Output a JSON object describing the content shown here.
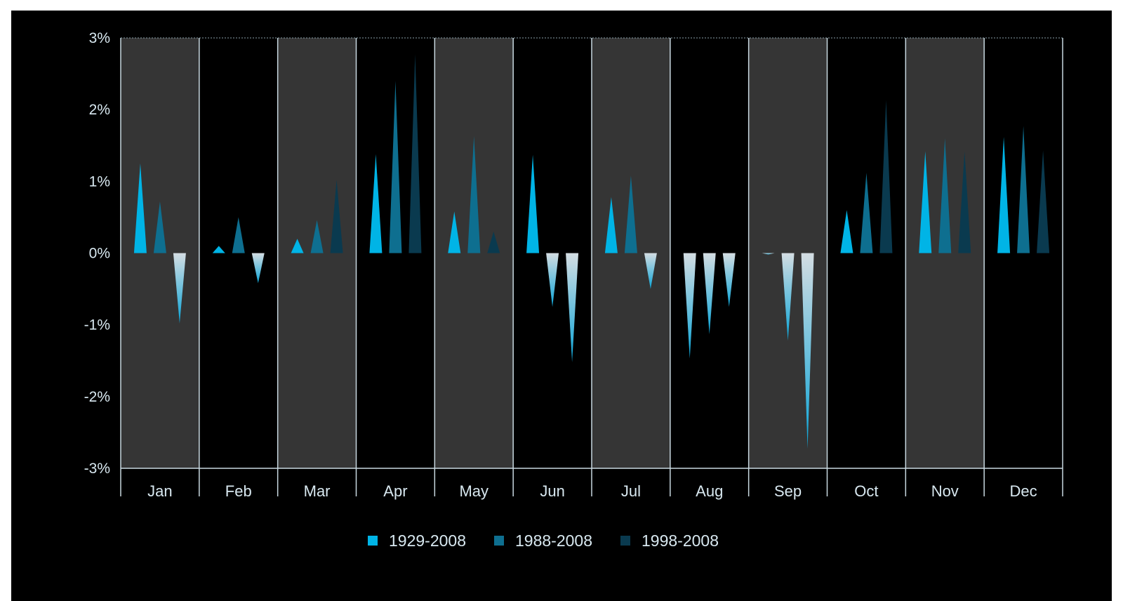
{
  "chart_data": {
    "type": "bar",
    "categories": [
      "Jan",
      "Feb",
      "Mar",
      "Apr",
      "May",
      "Jun",
      "Jul",
      "Aug",
      "Sep",
      "Oct",
      "Nov",
      "Dec"
    ],
    "series": [
      {
        "name": "1929-2008",
        "color": "#00b4e6",
        "values": [
          1.25,
          0.1,
          0.2,
          1.38,
          0.58,
          1.37,
          0.78,
          -1.47,
          -0.02,
          0.6,
          1.42,
          1.62
        ]
      },
      {
        "name": "1988-2008",
        "color": "#0e6f90",
        "values": [
          0.72,
          0.5,
          0.46,
          2.4,
          1.63,
          -0.75,
          1.08,
          -1.13,
          -1.22,
          1.12,
          1.6,
          1.77
        ]
      },
      {
        "name": "1998-2008",
        "color": "#0a3a4f",
        "values": [
          -0.98,
          -0.42,
          1.02,
          2.77,
          0.3,
          -1.52,
          -0.5,
          -0.75,
          -2.73,
          2.13,
          1.42,
          1.43
        ]
      }
    ],
    "negative_fill": [
      "#d4dde2",
      "#0aa5d8"
    ],
    "y_tick_labels": [
      "3%",
      "2%",
      "1%",
      "0%",
      "-1%",
      "-2%",
      "-3%"
    ],
    "ylim": [
      -3,
      3
    ],
    "bar_shape": "triangle",
    "alternating_band_color": "#353535",
    "legend_position": "bottom-center",
    "grid": false
  }
}
